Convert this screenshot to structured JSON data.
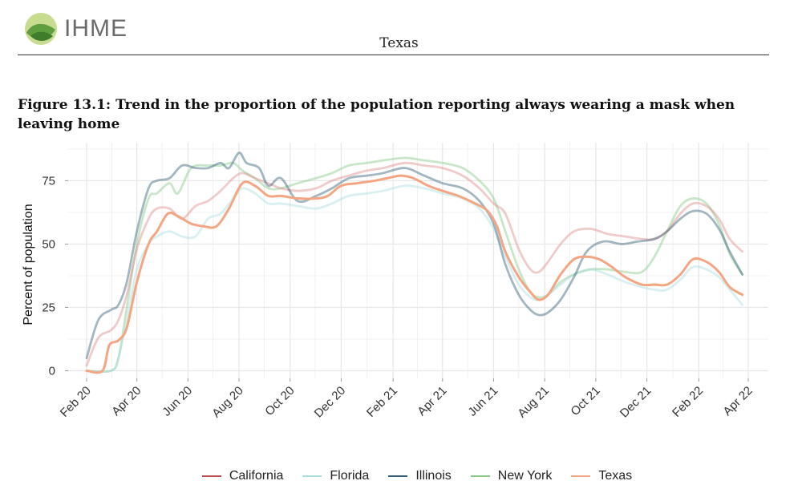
{
  "header": {
    "logo_text": "IHME",
    "page_title": "Texas"
  },
  "figure_title": "Figure 13.1: Trend in the proportion of the population reporting always wearing a mask when leaving home",
  "colors": {
    "California": "#e08a8a",
    "Florida": "#a8dde0",
    "Illinois": "#33607a",
    "New York": "#86c987",
    "Texas": "#f4a582"
  },
  "chart_data": {
    "type": "line",
    "title": "",
    "xlabel": "",
    "ylabel": "Percent of population",
    "x_unit": "date",
    "x_ticks": [
      {
        "date": "2020-02-01",
        "label": "Feb 20"
      },
      {
        "date": "2020-04-01",
        "label": "Apr 20"
      },
      {
        "date": "2020-06-01",
        "label": "Jun 20"
      },
      {
        "date": "2020-08-01",
        "label": "Aug 20"
      },
      {
        "date": "2020-10-01",
        "label": "Oct 20"
      },
      {
        "date": "2020-12-01",
        "label": "Dec 20"
      },
      {
        "date": "2021-02-01",
        "label": "Feb 21"
      },
      {
        "date": "2021-04-01",
        "label": "Apr 21"
      },
      {
        "date": "2021-06-01",
        "label": "Jun 21"
      },
      {
        "date": "2021-08-01",
        "label": "Aug 21"
      },
      {
        "date": "2021-10-01",
        "label": "Oct 21"
      },
      {
        "date": "2021-12-01",
        "label": "Dec 21"
      },
      {
        "date": "2022-02-01",
        "label": "Feb 22"
      },
      {
        "date": "2022-04-01",
        "label": "Apr 22"
      }
    ],
    "y_ticks": [
      0,
      25,
      50,
      75
    ],
    "ylim": [
      -3,
      90
    ],
    "xlim": [
      "2020-01-10",
      "2022-04-25"
    ],
    "grid": true,
    "legend_position": "bottom",
    "series": [
      {
        "name": "California",
        "points": [
          [
            "2020-02-01",
            2
          ],
          [
            "2020-02-15",
            13
          ],
          [
            "2020-03-01",
            16
          ],
          [
            "2020-03-10",
            20
          ],
          [
            "2020-03-20",
            30
          ],
          [
            "2020-04-01",
            48
          ],
          [
            "2020-04-15",
            60
          ],
          [
            "2020-04-25",
            64
          ],
          [
            "2020-05-10",
            64
          ],
          [
            "2020-05-25",
            60
          ],
          [
            "2020-06-10",
            65
          ],
          [
            "2020-06-25",
            67
          ],
          [
            "2020-07-10",
            71
          ],
          [
            "2020-07-25",
            76
          ],
          [
            "2020-08-05",
            78
          ],
          [
            "2020-08-20",
            76
          ],
          [
            "2020-09-05",
            74
          ],
          [
            "2020-09-20",
            72
          ],
          [
            "2020-10-10",
            71
          ],
          [
            "2020-11-01",
            72
          ],
          [
            "2020-11-20",
            75
          ],
          [
            "2020-12-10",
            77
          ],
          [
            "2021-01-01",
            79
          ],
          [
            "2021-01-20",
            80
          ],
          [
            "2021-02-15",
            82
          ],
          [
            "2021-03-10",
            81
          ],
          [
            "2021-04-01",
            80
          ],
          [
            "2021-04-25",
            77
          ],
          [
            "2021-05-15",
            72
          ],
          [
            "2021-06-01",
            66
          ],
          [
            "2021-06-15",
            62
          ],
          [
            "2021-07-01",
            48
          ],
          [
            "2021-07-15",
            40
          ],
          [
            "2021-07-25",
            39
          ],
          [
            "2021-08-05",
            43
          ],
          [
            "2021-08-20",
            50
          ],
          [
            "2021-09-05",
            55
          ],
          [
            "2021-09-25",
            56
          ],
          [
            "2021-10-15",
            54
          ],
          [
            "2021-11-05",
            53
          ],
          [
            "2021-11-25",
            52
          ],
          [
            "2021-12-10",
            52
          ],
          [
            "2021-12-25",
            55
          ],
          [
            "2022-01-10",
            62
          ],
          [
            "2022-01-25",
            66
          ],
          [
            "2022-02-10",
            65
          ],
          [
            "2022-02-25",
            60
          ],
          [
            "2022-03-10",
            52
          ],
          [
            "2022-03-25",
            47
          ]
        ]
      },
      {
        "name": "Florida",
        "points": [
          [
            "2020-02-01",
            0
          ],
          [
            "2020-03-01",
            0
          ],
          [
            "2020-03-10",
            5
          ],
          [
            "2020-03-20",
            20
          ],
          [
            "2020-04-01",
            40
          ],
          [
            "2020-04-15",
            50
          ],
          [
            "2020-04-25",
            53
          ],
          [
            "2020-05-10",
            55
          ],
          [
            "2020-05-25",
            53
          ],
          [
            "2020-06-10",
            53
          ],
          [
            "2020-06-25",
            60
          ],
          [
            "2020-07-10",
            62
          ],
          [
            "2020-07-25",
            68
          ],
          [
            "2020-08-05",
            72
          ],
          [
            "2020-08-20",
            70
          ],
          [
            "2020-09-05",
            66
          ],
          [
            "2020-09-20",
            66
          ],
          [
            "2020-10-10",
            65
          ],
          [
            "2020-11-01",
            64
          ],
          [
            "2020-11-20",
            66
          ],
          [
            "2020-12-10",
            69
          ],
          [
            "2021-01-01",
            70
          ],
          [
            "2021-01-20",
            71
          ],
          [
            "2021-02-15",
            73
          ],
          [
            "2021-03-10",
            72
          ],
          [
            "2021-04-01",
            70
          ],
          [
            "2021-04-25",
            68
          ],
          [
            "2021-05-15",
            64
          ],
          [
            "2021-06-01",
            56
          ],
          [
            "2021-06-15",
            45
          ],
          [
            "2021-07-01",
            34
          ],
          [
            "2021-07-15",
            29
          ],
          [
            "2021-07-25",
            28
          ],
          [
            "2021-08-05",
            30
          ],
          [
            "2021-08-20",
            34
          ],
          [
            "2021-09-05",
            38
          ],
          [
            "2021-09-25",
            40
          ],
          [
            "2021-10-15",
            38
          ],
          [
            "2021-11-05",
            35
          ],
          [
            "2021-11-25",
            33
          ],
          [
            "2021-12-10",
            32
          ],
          [
            "2021-12-25",
            32
          ],
          [
            "2022-01-10",
            36
          ],
          [
            "2022-01-25",
            41
          ],
          [
            "2022-02-10",
            40
          ],
          [
            "2022-02-25",
            37
          ],
          [
            "2022-03-10",
            32
          ],
          [
            "2022-03-25",
            26
          ]
        ]
      },
      {
        "name": "Illinois",
        "points": [
          [
            "2020-02-01",
            5
          ],
          [
            "2020-02-15",
            20
          ],
          [
            "2020-03-01",
            24
          ],
          [
            "2020-03-10",
            26
          ],
          [
            "2020-03-20",
            35
          ],
          [
            "2020-04-01",
            55
          ],
          [
            "2020-04-15",
            72
          ],
          [
            "2020-04-25",
            75
          ],
          [
            "2020-05-10",
            76
          ],
          [
            "2020-05-25",
            81
          ],
          [
            "2020-06-10",
            80
          ],
          [
            "2020-06-25",
            80
          ],
          [
            "2020-07-10",
            82
          ],
          [
            "2020-07-20",
            80
          ],
          [
            "2020-08-01",
            86
          ],
          [
            "2020-08-10",
            82
          ],
          [
            "2020-08-25",
            80
          ],
          [
            "2020-09-05",
            73
          ],
          [
            "2020-09-20",
            76
          ],
          [
            "2020-10-10",
            67
          ],
          [
            "2020-11-01",
            69
          ],
          [
            "2020-11-20",
            72
          ],
          [
            "2020-12-10",
            76
          ],
          [
            "2021-01-01",
            77
          ],
          [
            "2021-01-20",
            78
          ],
          [
            "2021-02-15",
            80
          ],
          [
            "2021-03-10",
            77
          ],
          [
            "2021-04-01",
            74
          ],
          [
            "2021-04-25",
            72
          ],
          [
            "2021-05-15",
            67
          ],
          [
            "2021-06-01",
            58
          ],
          [
            "2021-06-15",
            42
          ],
          [
            "2021-07-01",
            30
          ],
          [
            "2021-07-15",
            24
          ],
          [
            "2021-07-25",
            22
          ],
          [
            "2021-08-05",
            23
          ],
          [
            "2021-08-20",
            28
          ],
          [
            "2021-09-05",
            37
          ],
          [
            "2021-09-20",
            47
          ],
          [
            "2021-10-10",
            51
          ],
          [
            "2021-11-01",
            50
          ],
          [
            "2021-11-20",
            51
          ],
          [
            "2021-12-10",
            52
          ],
          [
            "2021-12-25",
            55
          ],
          [
            "2022-01-10",
            60
          ],
          [
            "2022-01-25",
            63
          ],
          [
            "2022-02-10",
            62
          ],
          [
            "2022-02-25",
            56
          ],
          [
            "2022-03-10",
            47
          ],
          [
            "2022-03-25",
            38
          ]
        ]
      },
      {
        "name": "New York",
        "points": [
          [
            "2020-02-01",
            0
          ],
          [
            "2020-03-01",
            0
          ],
          [
            "2020-03-10",
            5
          ],
          [
            "2020-03-20",
            25
          ],
          [
            "2020-04-01",
            50
          ],
          [
            "2020-04-15",
            68
          ],
          [
            "2020-04-25",
            70
          ],
          [
            "2020-05-10",
            74
          ],
          [
            "2020-05-20",
            70
          ],
          [
            "2020-06-05",
            80
          ],
          [
            "2020-06-25",
            81
          ],
          [
            "2020-07-10",
            81
          ],
          [
            "2020-07-25",
            82
          ],
          [
            "2020-08-05",
            79
          ],
          [
            "2020-08-20",
            76
          ],
          [
            "2020-09-05",
            72
          ],
          [
            "2020-09-20",
            72
          ],
          [
            "2020-10-10",
            74
          ],
          [
            "2020-11-01",
            76
          ],
          [
            "2020-11-20",
            78
          ],
          [
            "2020-12-10",
            81
          ],
          [
            "2021-01-01",
            82
          ],
          [
            "2021-01-20",
            83
          ],
          [
            "2021-02-15",
            84
          ],
          [
            "2021-03-10",
            83
          ],
          [
            "2021-04-01",
            82
          ],
          [
            "2021-04-25",
            80
          ],
          [
            "2021-05-15",
            75
          ],
          [
            "2021-06-01",
            68
          ],
          [
            "2021-06-15",
            55
          ],
          [
            "2021-07-01",
            40
          ],
          [
            "2021-07-15",
            31
          ],
          [
            "2021-07-25",
            29
          ],
          [
            "2021-08-05",
            30
          ],
          [
            "2021-08-20",
            35
          ],
          [
            "2021-09-05",
            38
          ],
          [
            "2021-09-25",
            40
          ],
          [
            "2021-10-15",
            40
          ],
          [
            "2021-11-05",
            39
          ],
          [
            "2021-11-25",
            39
          ],
          [
            "2021-12-10",
            45
          ],
          [
            "2021-12-25",
            55
          ],
          [
            "2022-01-10",
            65
          ],
          [
            "2022-01-25",
            68
          ],
          [
            "2022-02-10",
            66
          ],
          [
            "2022-02-25",
            58
          ],
          [
            "2022-03-10",
            46
          ],
          [
            "2022-03-25",
            38
          ]
        ]
      },
      {
        "name": "Texas",
        "points": [
          [
            "2020-02-01",
            0
          ],
          [
            "2020-02-20",
            0
          ],
          [
            "2020-02-28",
            10
          ],
          [
            "2020-03-10",
            12
          ],
          [
            "2020-03-20",
            17
          ],
          [
            "2020-04-01",
            35
          ],
          [
            "2020-04-15",
            50
          ],
          [
            "2020-04-25",
            55
          ],
          [
            "2020-05-08",
            62
          ],
          [
            "2020-05-20",
            61
          ],
          [
            "2020-06-05",
            58
          ],
          [
            "2020-06-20",
            57
          ],
          [
            "2020-07-05",
            57
          ],
          [
            "2020-07-20",
            64
          ],
          [
            "2020-08-05",
            74
          ],
          [
            "2020-08-20",
            73
          ],
          [
            "2020-09-05",
            69
          ],
          [
            "2020-09-20",
            69
          ],
          [
            "2020-10-10",
            68
          ],
          [
            "2020-11-01",
            68
          ],
          [
            "2020-11-15",
            69
          ],
          [
            "2020-12-01",
            73
          ],
          [
            "2020-12-20",
            74
          ],
          [
            "2021-01-10",
            75
          ],
          [
            "2021-01-25",
            76
          ],
          [
            "2021-02-10",
            77
          ],
          [
            "2021-02-25",
            76
          ],
          [
            "2021-03-15",
            73
          ],
          [
            "2021-04-01",
            71
          ],
          [
            "2021-04-20",
            69
          ],
          [
            "2021-05-10",
            66
          ],
          [
            "2021-05-25",
            63
          ],
          [
            "2021-06-05",
            57
          ],
          [
            "2021-06-15",
            47
          ],
          [
            "2021-07-01",
            37
          ],
          [
            "2021-07-15",
            31
          ],
          [
            "2021-07-25",
            28
          ],
          [
            "2021-08-05",
            30
          ],
          [
            "2021-08-20",
            38
          ],
          [
            "2021-09-05",
            44
          ],
          [
            "2021-09-20",
            45
          ],
          [
            "2021-10-05",
            44
          ],
          [
            "2021-10-20",
            41
          ],
          [
            "2021-11-05",
            37
          ],
          [
            "2021-11-25",
            34
          ],
          [
            "2021-12-10",
            34
          ],
          [
            "2021-12-25",
            34
          ],
          [
            "2022-01-10",
            38
          ],
          [
            "2022-01-25",
            44
          ],
          [
            "2022-02-10",
            43
          ],
          [
            "2022-02-25",
            39
          ],
          [
            "2022-03-10",
            33
          ],
          [
            "2022-03-25",
            30
          ]
        ]
      }
    ]
  }
}
